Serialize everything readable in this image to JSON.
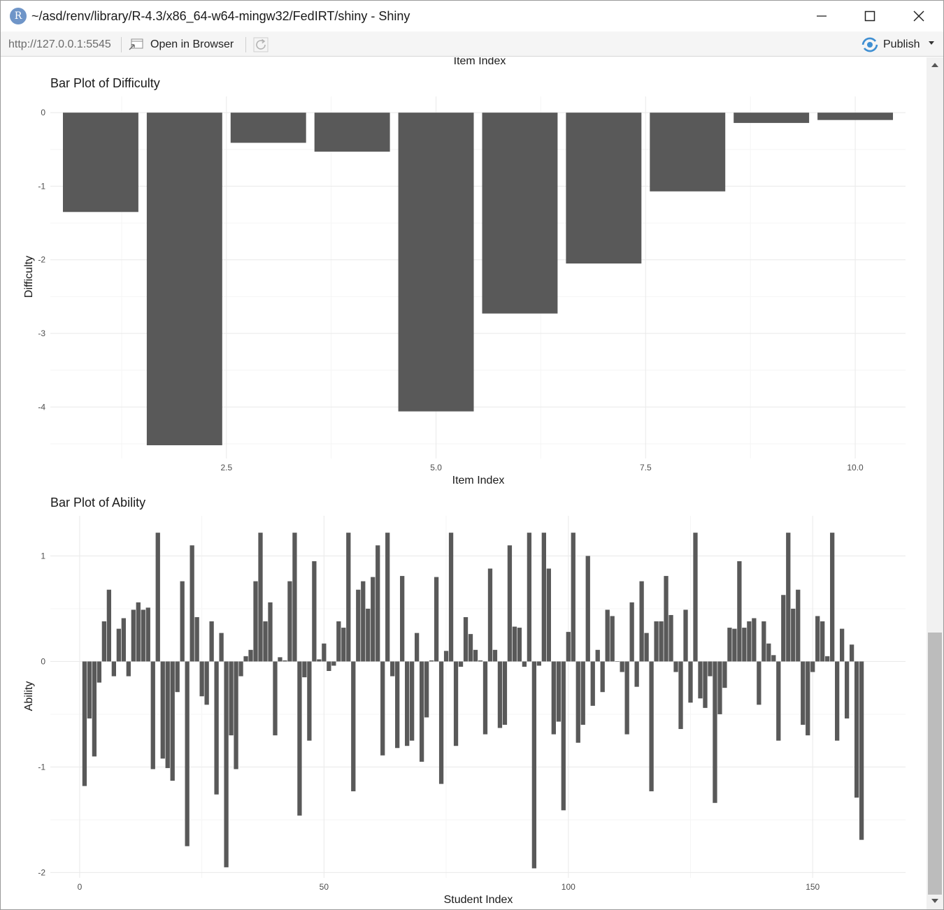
{
  "window": {
    "app_icon_letter": "R",
    "title": "~/asd/renv/library/R-4.3/x86_64-w64-mingw32/FedIRT/shiny - Shiny",
    "minimize_icon": "minimize-icon",
    "maximize_icon": "maximize-icon",
    "close_icon": "close-icon"
  },
  "toolbar": {
    "url": "http://127.0.0.1:5545",
    "open_in_browser": "Open in Browser",
    "publish": "Publish"
  },
  "colors": {
    "bar": "#595959",
    "grid_major": "#ebebeb",
    "grid_minor": "#f5f5f5",
    "publish_accent": "#3f8fd2"
  },
  "chart_data": [
    {
      "type": "bar",
      "partial_label": "Item Index"
    },
    {
      "type": "bar",
      "title": "Bar Plot of Difficulty",
      "xlabel": "Item Index",
      "ylabel": "Difficulty",
      "x": [
        1,
        2,
        3,
        4,
        5,
        6,
        7,
        8,
        9,
        10
      ],
      "values": [
        -1.35,
        -4.52,
        -0.41,
        -0.53,
        -4.06,
        -2.73,
        -2.05,
        -1.07,
        -0.14,
        -0.1
      ],
      "xlim": [
        0.4,
        10.6
      ],
      "ylim": [
        -4.7,
        0.22
      ],
      "x_ticks": [
        2.5,
        5.0,
        7.5,
        10.0
      ],
      "x_tick_labels": [
        "2.5",
        "5.0",
        "7.5",
        "10.0"
      ],
      "y_ticks": [
        0,
        -1,
        -2,
        -3,
        -4
      ],
      "y_tick_labels": [
        "0",
        "-1",
        "-2",
        "-3",
        "-4"
      ],
      "grid": true,
      "theme": "minimal"
    },
    {
      "type": "bar",
      "title": "Bar Plot of Ability",
      "xlabel": "Student Index",
      "ylabel": "Ability",
      "x_start": 1,
      "values": [
        -1.18,
        -0.54,
        -0.9,
        -0.2,
        0.38,
        0.68,
        -0.14,
        0.31,
        0.41,
        -0.14,
        0.49,
        0.56,
        0.49,
        0.51,
        -1.02,
        1.22,
        -0.92,
        -1.01,
        -1.13,
        -0.29,
        0.76,
        -1.75,
        1.1,
        0.42,
        -0.33,
        -0.41,
        0.38,
        -1.26,
        0.27,
        -1.95,
        -0.7,
        -1.02,
        -0.14,
        0.05,
        0.11,
        0.76,
        1.22,
        0.38,
        0.56,
        -0.7,
        0.04,
        0.01,
        0.76,
        1.22,
        -1.46,
        -0.15,
        -0.75,
        0.95,
        0.02,
        0.17,
        -0.09,
        -0.04,
        0.38,
        0.32,
        1.22,
        -1.23,
        0.68,
        0.76,
        0.5,
        0.8,
        1.1,
        -0.89,
        1.22,
        -0.14,
        -0.82,
        0.81,
        -0.8,
        -0.75,
        0.27,
        -0.95,
        -0.53,
        0.01,
        0.8,
        -1.16,
        0.1,
        1.22,
        -0.8,
        -0.05,
        0.42,
        0.26,
        0.11,
        0.01,
        -0.69,
        0.88,
        0.11,
        -0.63,
        -0.6,
        1.1,
        0.33,
        0.32,
        -0.05,
        1.22,
        -1.96,
        -0.04,
        1.22,
        0.88,
        -0.69,
        -0.57,
        -1.41,
        0.28,
        1.22,
        -0.77,
        -0.6,
        1.0,
        -0.42,
        0.11,
        -0.29,
        0.49,
        0.43,
        0.0,
        -0.1,
        -0.69,
        0.56,
        -0.24,
        0.76,
        0.27,
        -1.23,
        0.38,
        0.38,
        0.81,
        0.44,
        -0.1,
        -0.64,
        0.49,
        -0.39,
        1.22,
        -0.35,
        -0.44,
        -0.14,
        -1.34,
        -0.5,
        -0.25,
        0.32,
        0.31,
        0.95,
        0.32,
        0.38,
        0.41,
        -0.41,
        0.38,
        0.17,
        0.06,
        -0.75,
        0.63,
        1.22,
        0.5,
        0.68,
        -0.6,
        -0.7,
        -0.1,
        0.43,
        0.38,
        0.05,
        1.22,
        -0.75,
        0.31,
        -0.54,
        0.16,
        -1.29,
        -1.69
      ],
      "xlim": [
        -6,
        169
      ],
      "ylim": [
        -2.05,
        1.38
      ],
      "x_ticks": [
        0,
        50,
        100,
        150
      ],
      "x_tick_labels": [
        "0",
        "50",
        "100",
        "150"
      ],
      "y_ticks": [
        1,
        0,
        -1,
        -2
      ],
      "y_tick_labels": [
        "1",
        "0",
        "-1",
        "-2"
      ],
      "grid": true,
      "theme": "minimal"
    }
  ]
}
